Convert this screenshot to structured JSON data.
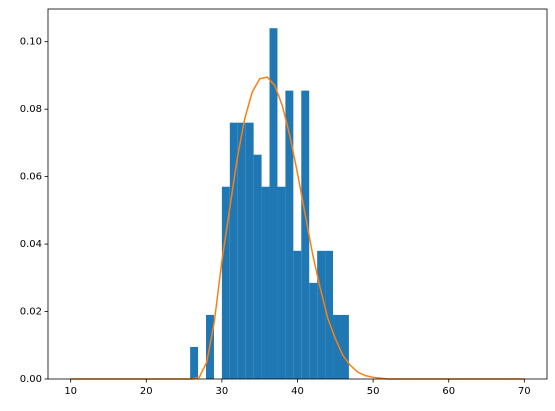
{
  "chart_data": {
    "type": "histogram",
    "bins": [
      25.8,
      26.85,
      27.9,
      28.95,
      30.0,
      31.05,
      32.1,
      33.15,
      34.2,
      35.25,
      36.3,
      37.35,
      38.4,
      39.45,
      40.5,
      41.55,
      42.6,
      43.65,
      44.7,
      45.75,
      46.8
    ],
    "values": [
      0.0095,
      0,
      0.019,
      0,
      0.057,
      0.076,
      0.076,
      0.076,
      0.0665,
      0.057,
      0.104,
      0.057,
      0.0855,
      0.038,
      0.0855,
      0.0285,
      0.038,
      0.038,
      0.019,
      0.019
    ],
    "color": "#1f77b4",
    "overlay": {
      "type": "line",
      "color": "#ff7f0e",
      "x": [
        10,
        20,
        26,
        27,
        28,
        29,
        30,
        31,
        32,
        33,
        34,
        35,
        36,
        37,
        38,
        39,
        40,
        41,
        42,
        43,
        44,
        45,
        46,
        47,
        48,
        49,
        50,
        52,
        55,
        60,
        70
      ],
      "values": [
        0,
        0,
        0,
        0.0005,
        0.005,
        0.017,
        0.035,
        0.05,
        0.065,
        0.077,
        0.085,
        0.089,
        0.0895,
        0.087,
        0.081,
        0.072,
        0.061,
        0.049,
        0.037,
        0.027,
        0.018,
        0.012,
        0.007,
        0.004,
        0.002,
        0.001,
        0.0005,
        0,
        0,
        0,
        0
      ]
    },
    "xlim": [
      7,
      73
    ],
    "ylim": [
      0,
      0.1097
    ],
    "xticks": [
      10,
      20,
      30,
      40,
      50,
      60,
      70
    ],
    "yticks": [
      {
        "value": 0,
        "label": "0.00"
      },
      {
        "value": 0.02,
        "label": "0.02"
      },
      {
        "value": 0.04,
        "label": "0.04"
      },
      {
        "value": 0.06,
        "label": "0.06"
      },
      {
        "value": 0.08,
        "label": "0.08"
      },
      {
        "value": 0.1,
        "label": "0.10"
      }
    ]
  }
}
